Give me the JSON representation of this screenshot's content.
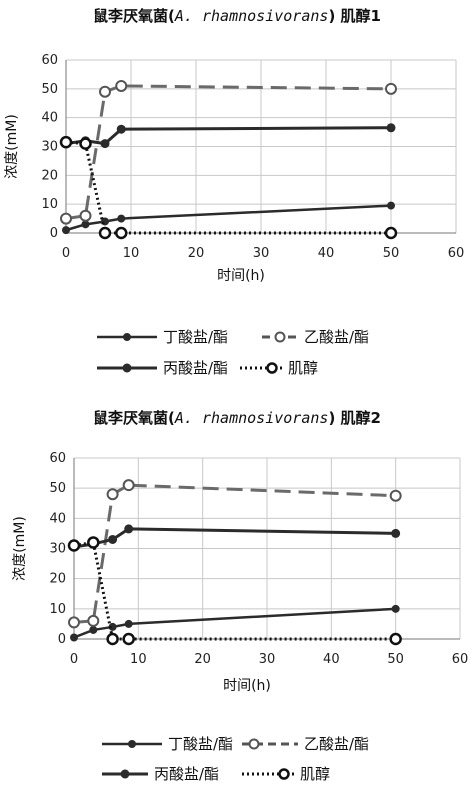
{
  "chart_data": [
    {
      "type": "line",
      "title_prefix": "鼠李厌氧菌(",
      "title_species": "A. rhamnosivorans",
      "title_suffix": ") 肌醇1",
      "xlabel": "时间(h)",
      "ylabel": "浓度(mM)",
      "xlim": [
        0,
        60
      ],
      "ylim": [
        0,
        60
      ],
      "xticks": [
        0,
        10,
        20,
        30,
        40,
        50,
        60
      ],
      "yticks": [
        0,
        10,
        20,
        30,
        40,
        50,
        60
      ],
      "legend_position": "bottom",
      "series": [
        {
          "name": "丁酸盐/酯",
          "style": "solid-thin",
          "color": "#2b2b2b",
          "x": [
            0,
            3,
            6,
            8.5,
            50
          ],
          "y": [
            1,
            3,
            4,
            5,
            9.5
          ]
        },
        {
          "name": "乙酸盐/酯",
          "style": "dashed-open",
          "color": "#555555",
          "x": [
            0,
            3,
            6,
            8.5,
            50
          ],
          "y": [
            5,
            6,
            49,
            51,
            50
          ]
        },
        {
          "name": "丙酸盐/酯",
          "style": "solid-thick",
          "color": "#2b2b2b",
          "x": [
            0,
            3,
            6,
            8.5,
            50
          ],
          "y": [
            31,
            32,
            31,
            36,
            36.5
          ]
        },
        {
          "name": "肌醇",
          "style": "dotted-open",
          "color": "#111111",
          "x": [
            0,
            3,
            6,
            8.5,
            50
          ],
          "y": [
            31.5,
            31,
            0,
            0,
            0
          ]
        }
      ]
    },
    {
      "type": "line",
      "title_prefix": "鼠李厌氧菌(",
      "title_species": "A. rhamnosivorans",
      "title_suffix": ") 肌醇2",
      "xlabel": "时间(h)",
      "ylabel": "浓度(mM)",
      "xlim": [
        0,
        60
      ],
      "ylim": [
        0,
        60
      ],
      "xticks": [
        0,
        10,
        20,
        30,
        40,
        50,
        60
      ],
      "yticks": [
        0,
        10,
        20,
        30,
        40,
        50,
        60
      ],
      "legend_position": "bottom",
      "series": [
        {
          "name": "丁酸盐/酯",
          "style": "solid-thin",
          "color": "#2b2b2b",
          "x": [
            0,
            3,
            6,
            8.5,
            50
          ],
          "y": [
            0.5,
            3,
            4,
            5,
            10
          ]
        },
        {
          "name": "乙酸盐/酯",
          "style": "dashed-open",
          "color": "#555555",
          "x": [
            0,
            3,
            6,
            8.5,
            50
          ],
          "y": [
            5.5,
            6,
            48,
            51,
            47.5
          ]
        },
        {
          "name": "丙酸盐/酯",
          "style": "solid-thick",
          "color": "#2b2b2b",
          "x": [
            0,
            3,
            6,
            8.5,
            50
          ],
          "y": [
            30.5,
            31.5,
            33,
            36.5,
            35
          ]
        },
        {
          "name": "肌醇",
          "style": "dotted-open",
          "color": "#111111",
          "x": [
            0,
            3,
            6,
            8.5,
            50
          ],
          "y": [
            31,
            32,
            0,
            0,
            0
          ]
        }
      ]
    }
  ]
}
